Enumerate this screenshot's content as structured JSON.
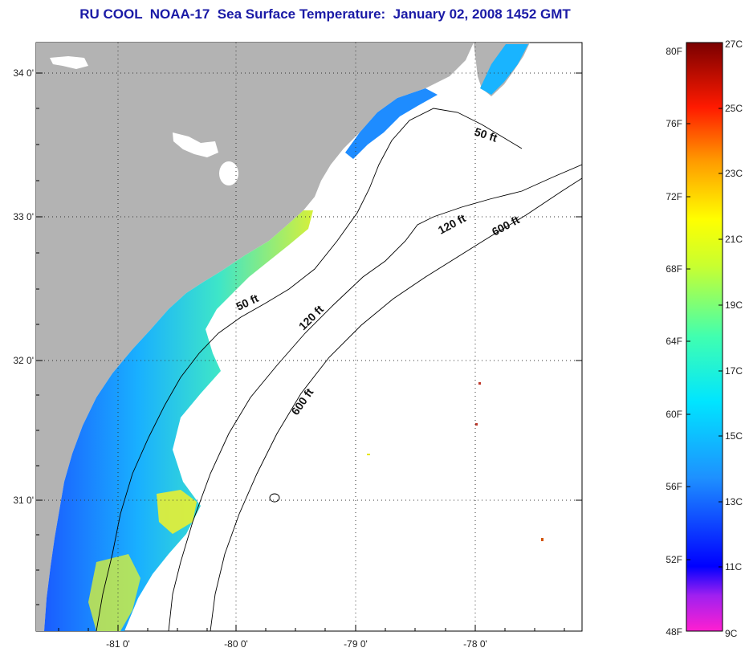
{
  "title": "RU COOL  NOAA-17  Sea Surface Temperature:  January 02, 2008 1452 GMT",
  "lat_labels": [
    "34 0'",
    "33 0'",
    "32 0'",
    "31 0'"
  ],
  "lon_labels": [
    "-81 0'",
    "-80 0'",
    "-79 0'",
    "-78 0'"
  ],
  "contour_labels": [
    "50 ft",
    "120 ft",
    "600 ft",
    "50 ft",
    "120 ft",
    "600 ft"
  ],
  "colorbar": {
    "f_labels": [
      "80F",
      "76F",
      "72F",
      "68F",
      "64F",
      "60F",
      "56F",
      "52F",
      "48F"
    ],
    "c_labels": [
      "27C",
      "25C",
      "23C",
      "21C",
      "19C",
      "17C",
      "15C",
      "13C",
      "11C",
      "9C"
    ]
  },
  "colors": {
    "land": "#b3b3b3",
    "title": "#1a1aa6",
    "sst_cold": "#1a5cff",
    "sst_mid": "#19c9ff",
    "sst_warm": "#d6f03a"
  }
}
